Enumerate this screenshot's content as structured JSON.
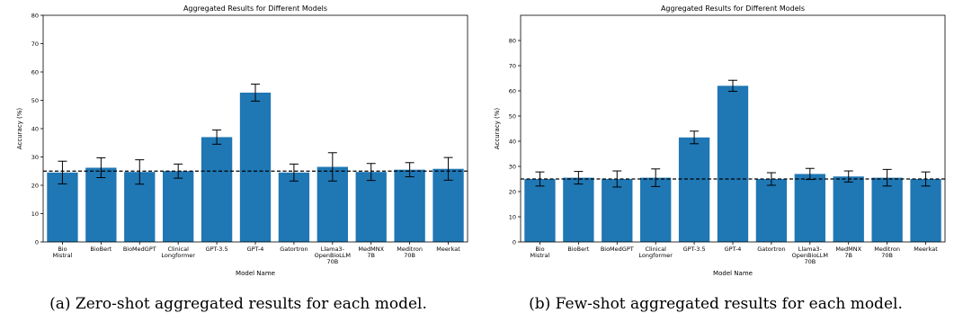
{
  "chart_data": [
    {
      "type": "bar",
      "title": "Aggregated Results for Different Models",
      "xlabel": "Model Name",
      "ylabel": "Accuracy (%)",
      "ylim": [
        0,
        80
      ],
      "yticks": [
        0,
        10,
        20,
        30,
        40,
        50,
        60,
        70,
        80
      ],
      "categories": [
        [
          "Bio",
          "Mistral"
        ],
        [
          "BioBert"
        ],
        [
          "BioMedGPT"
        ],
        [
          "Clinical",
          "Longformer"
        ],
        [
          "GPT-3.5"
        ],
        [
          "GPT-4"
        ],
        [
          "Gatortron"
        ],
        [
          "Llama3-",
          "OpenBioLLM",
          "70B"
        ],
        [
          "MedMNX",
          "7B"
        ],
        [
          "Meditron",
          "70B"
        ],
        [
          "Meerkat"
        ]
      ],
      "values": [
        24.5,
        26.2,
        24.7,
        25.0,
        37.0,
        52.7,
        24.5,
        26.5,
        24.7,
        25.5,
        25.8
      ],
      "errors": [
        4.0,
        3.5,
        4.3,
        2.5,
        2.5,
        3.0,
        3.0,
        5.0,
        3.0,
        2.5,
        4.0
      ],
      "baseline": 25,
      "grid": false,
      "color": "#1f77b4",
      "caption": "(a) Zero-shot aggregated results for each model."
    },
    {
      "type": "bar",
      "title": "Aggregated Results for Different Models",
      "xlabel": "Model Name",
      "ylabel": "Accuracy (%)",
      "ylim": [
        0,
        90
      ],
      "yticks": [
        0,
        10,
        20,
        30,
        40,
        50,
        60,
        70,
        80
      ],
      "categories": [
        [
          "Bio",
          "Mistral"
        ],
        [
          "BioBert"
        ],
        [
          "BioMedGPT"
        ],
        [
          "Clinical",
          "Longformer"
        ],
        [
          "GPT-3.5"
        ],
        [
          "GPT-4"
        ],
        [
          "Gatortron"
        ],
        [
          "Llama3-",
          "OpenBioLLM",
          "70B"
        ],
        [
          "MedMNX",
          "7B"
        ],
        [
          "Meditron",
          "70B"
        ],
        [
          "Meerkat"
        ]
      ],
      "values": [
        25.0,
        25.5,
        25.0,
        25.5,
        41.5,
        62.0,
        25.0,
        27.0,
        26.0,
        25.5,
        25.0
      ],
      "errors": [
        2.8,
        2.5,
        3.2,
        3.5,
        2.5,
        2.2,
        2.5,
        2.2,
        2.2,
        3.3,
        2.8
      ],
      "baseline": 25,
      "grid": false,
      "color": "#1f77b4",
      "caption": "(b) Few-shot aggregated results for each model."
    }
  ]
}
